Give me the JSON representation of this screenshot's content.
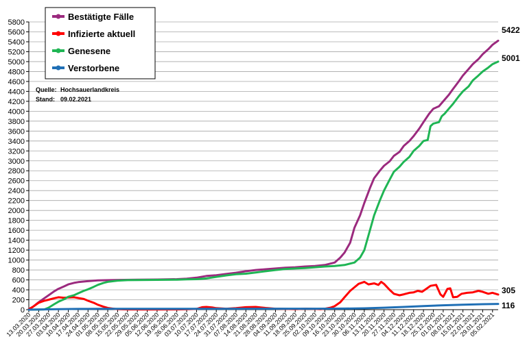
{
  "chart_data": {
    "type": "line",
    "title": "",
    "xlabel": "",
    "ylabel": "",
    "ylim": [
      0,
      5800
    ],
    "yticks": [
      0,
      200,
      400,
      600,
      800,
      1000,
      1200,
      1400,
      1600,
      1800,
      2000,
      2200,
      2400,
      2600,
      2800,
      3000,
      3200,
      3400,
      3600,
      3800,
      4000,
      4200,
      4400,
      4600,
      4800,
      5000,
      5200,
      5400,
      5600,
      5800
    ],
    "x_start": "13.03.2020",
    "x_end": "09.02.2021",
    "x_tick_labels": [
      "13.03.2020",
      "20.03.2020",
      "27.03.2020",
      "03.04.2020",
      "10.04.2020",
      "17.04.2020",
      "24.04.2020",
      "01.05.2020",
      "08.05.2020",
      "15.05.2020",
      "22.05.2020",
      "29.05.2020",
      "05.06.2020",
      "12.06.2020",
      "19.06.2020",
      "26.06.2020",
      "03.07.2020",
      "10.07.2020",
      "17.07.2020",
      "24.07.2020",
      "31.07.2020",
      "07.08.2020",
      "14.08.2020",
      "21.08.2020",
      "28.08.2020",
      "04.09.2020",
      "11.09.2020",
      "18.09.2020",
      "25.09.2020",
      "02.10.2020",
      "09.10.2020",
      "16.10.2020",
      "23.10.2020",
      "30.10.2020",
      "06.11.2020",
      "13.11.2020",
      "20.11.2020",
      "27.11.2020",
      "04.12.2020",
      "11.12.2020",
      "18.12.2020",
      "25.12.2020",
      "01.01.2021",
      "08.01.2021",
      "15.01.2021",
      "22.01.2021",
      "29.01.2021",
      "05.02.2021"
    ],
    "grid": "horizontal",
    "legend_position": "top-left",
    "annotations": {
      "source_label": "Quelle:",
      "source_value": "Hochsauerlandkreis",
      "date_label": "Stand:",
      "date_value": "09.02.2021"
    },
    "series": [
      {
        "name": "Bestätigte Fälle",
        "color": "#9b2a7e",
        "end_label": "5422",
        "points": [
          [
            "13.03.2020",
            10
          ],
          [
            "16.03.2020",
            60
          ],
          [
            "20.03.2020",
            150
          ],
          [
            "24.03.2020",
            230
          ],
          [
            "27.03.2020",
            290
          ],
          [
            "31.03.2020",
            370
          ],
          [
            "03.04.2020",
            420
          ],
          [
            "07.04.2020",
            470
          ],
          [
            "10.04.2020",
            510
          ],
          [
            "14.04.2020",
            540
          ],
          [
            "17.04.2020",
            555
          ],
          [
            "24.04.2020",
            575
          ],
          [
            "01.05.2020",
            590
          ],
          [
            "15.05.2020",
            600
          ],
          [
            "29.05.2020",
            605
          ],
          [
            "12.06.2020",
            608
          ],
          [
            "26.06.2020",
            615
          ],
          [
            "03.07.2020",
            625
          ],
          [
            "10.07.2020",
            645
          ],
          [
            "17.07.2020",
            680
          ],
          [
            "24.07.2020",
            695
          ],
          [
            "31.07.2020",
            720
          ],
          [
            "07.08.2020",
            745
          ],
          [
            "14.08.2020",
            775
          ],
          [
            "21.08.2020",
            800
          ],
          [
            "28.08.2020",
            815
          ],
          [
            "04.09.2020",
            830
          ],
          [
            "11.09.2020",
            845
          ],
          [
            "18.09.2020",
            855
          ],
          [
            "25.09.2020",
            870
          ],
          [
            "02.10.2020",
            880
          ],
          [
            "09.10.2020",
            900
          ],
          [
            "16.10.2020",
            950
          ],
          [
            "20.10.2020",
            1050
          ],
          [
            "23.10.2020",
            1150
          ],
          [
            "27.10.2020",
            1350
          ],
          [
            "30.10.2020",
            1650
          ],
          [
            "03.11.2020",
            1900
          ],
          [
            "06.11.2020",
            2150
          ],
          [
            "10.11.2020",
            2450
          ],
          [
            "13.11.2020",
            2650
          ],
          [
            "17.11.2020",
            2800
          ],
          [
            "20.11.2020",
            2900
          ],
          [
            "24.11.2020",
            2990
          ],
          [
            "27.11.2020",
            3100
          ],
          [
            "01.12.2020",
            3180
          ],
          [
            "04.12.2020",
            3300
          ],
          [
            "08.12.2020",
            3400
          ],
          [
            "11.12.2020",
            3500
          ],
          [
            "15.12.2020",
            3650
          ],
          [
            "18.12.2020",
            3780
          ],
          [
            "22.12.2020",
            3950
          ],
          [
            "25.12.2020",
            4050
          ],
          [
            "29.12.2020",
            4100
          ],
          [
            "01.01.2021",
            4200
          ],
          [
            "05.01.2021",
            4330
          ],
          [
            "08.01.2021",
            4450
          ],
          [
            "12.01.2021",
            4600
          ],
          [
            "15.01.2021",
            4720
          ],
          [
            "19.01.2021",
            4850
          ],
          [
            "22.01.2021",
            4950
          ],
          [
            "26.01.2021",
            5050
          ],
          [
            "29.01.2021",
            5150
          ],
          [
            "02.02.2021",
            5250
          ],
          [
            "05.02.2021",
            5340
          ],
          [
            "09.02.2021",
            5422
          ]
        ]
      },
      {
        "name": "Infizierte aktuell",
        "color": "#ff0000",
        "end_label": "305",
        "points": [
          [
            "13.03.2020",
            10
          ],
          [
            "16.03.2020",
            60
          ],
          [
            "20.03.2020",
            140
          ],
          [
            "24.03.2020",
            180
          ],
          [
            "27.03.2020",
            200
          ],
          [
            "31.03.2020",
            230
          ],
          [
            "03.04.2020",
            250
          ],
          [
            "07.04.2020",
            240
          ],
          [
            "10.04.2020",
            245
          ],
          [
            "14.04.2020",
            250
          ],
          [
            "17.04.2020",
            235
          ],
          [
            "21.04.2020",
            215
          ],
          [
            "24.04.2020",
            180
          ],
          [
            "28.04.2020",
            140
          ],
          [
            "01.05.2020",
            100
          ],
          [
            "05.05.2020",
            60
          ],
          [
            "08.05.2020",
            35
          ],
          [
            "12.05.2020",
            20
          ],
          [
            "15.05.2020",
            10
          ],
          [
            "22.05.2020",
            5
          ],
          [
            "05.06.2020",
            3
          ],
          [
            "26.06.2020",
            5
          ],
          [
            "03.07.2020",
            8
          ],
          [
            "10.07.2020",
            15
          ],
          [
            "14.07.2020",
            50
          ],
          [
            "17.07.2020",
            55
          ],
          [
            "21.07.2020",
            45
          ],
          [
            "24.07.2020",
            30
          ],
          [
            "31.07.2020",
            20
          ],
          [
            "07.08.2020",
            30
          ],
          [
            "14.08.2020",
            50
          ],
          [
            "21.08.2020",
            55
          ],
          [
            "28.08.2020",
            35
          ],
          [
            "04.09.2020",
            20
          ],
          [
            "11.09.2020",
            15
          ],
          [
            "18.09.2020",
            10
          ],
          [
            "25.09.2020",
            20
          ],
          [
            "02.10.2020",
            15
          ],
          [
            "06.10.2020",
            10
          ],
          [
            "09.10.2020",
            20
          ],
          [
            "13.10.2020",
            40
          ],
          [
            "16.10.2020",
            70
          ],
          [
            "20.10.2020",
            150
          ],
          [
            "23.10.2020",
            250
          ],
          [
            "27.10.2020",
            380
          ],
          [
            "30.10.2020",
            450
          ],
          [
            "02.11.2020",
            520
          ],
          [
            "06.11.2020",
            560
          ],
          [
            "09.11.2020",
            510
          ],
          [
            "13.11.2020",
            530
          ],
          [
            "16.11.2020",
            500
          ],
          [
            "18.11.2020",
            560
          ],
          [
            "20.11.2020",
            520
          ],
          [
            "24.11.2020",
            400
          ],
          [
            "27.11.2020",
            320
          ],
          [
            "01.12.2020",
            290
          ],
          [
            "04.12.2020",
            310
          ],
          [
            "08.12.2020",
            340
          ],
          [
            "11.12.2020",
            350
          ],
          [
            "14.12.2020",
            380
          ],
          [
            "17.12.2020",
            360
          ],
          [
            "20.12.2020",
            420
          ],
          [
            "23.12.2020",
            480
          ],
          [
            "27.12.2020",
            500
          ],
          [
            "30.12.2020",
            310
          ],
          [
            "01.01.2021",
            260
          ],
          [
            "04.01.2021",
            420
          ],
          [
            "06.01.2021",
            430
          ],
          [
            "08.01.2021",
            250
          ],
          [
            "11.01.2021",
            260
          ],
          [
            "14.01.2021",
            320
          ],
          [
            "18.01.2021",
            340
          ],
          [
            "22.01.2021",
            350
          ],
          [
            "26.01.2021",
            380
          ],
          [
            "29.01.2021",
            360
          ],
          [
            "02.02.2021",
            320
          ],
          [
            "05.02.2021",
            340
          ],
          [
            "09.02.2021",
            305
          ]
        ]
      },
      {
        "name": "Genesene",
        "color": "#1fb554",
        "end_label": "5001",
        "points": [
          [
            "13.03.2020",
            0
          ],
          [
            "24.03.2020",
            5
          ],
          [
            "27.03.2020",
            40
          ],
          [
            "31.03.2020",
            110
          ],
          [
            "03.04.2020",
            160
          ],
          [
            "07.04.2020",
            210
          ],
          [
            "10.04.2020",
            260
          ],
          [
            "14.04.2020",
            290
          ],
          [
            "17.04.2020",
            330
          ],
          [
            "21.04.2020",
            380
          ],
          [
            "24.04.2020",
            410
          ],
          [
            "28.04.2020",
            460
          ],
          [
            "01.05.2020",
            500
          ],
          [
            "05.05.2020",
            540
          ],
          [
            "08.05.2020",
            560
          ],
          [
            "12.05.2020",
            575
          ],
          [
            "15.05.2020",
            585
          ],
          [
            "22.05.2020",
            595
          ],
          [
            "05.06.2020",
            600
          ],
          [
            "26.06.2020",
            605
          ],
          [
            "03.07.2020",
            610
          ],
          [
            "10.07.2020",
            615
          ],
          [
            "17.07.2020",
            630
          ],
          [
            "24.07.2020",
            660
          ],
          [
            "31.07.2020",
            690
          ],
          [
            "07.08.2020",
            715
          ],
          [
            "14.08.2020",
            725
          ],
          [
            "21.08.2020",
            750
          ],
          [
            "28.08.2020",
            775
          ],
          [
            "04.09.2020",
            800
          ],
          [
            "11.09.2020",
            820
          ],
          [
            "18.09.2020",
            830
          ],
          [
            "25.09.2020",
            840
          ],
          [
            "02.10.2020",
            855
          ],
          [
            "09.10.2020",
            870
          ],
          [
            "16.10.2020",
            880
          ],
          [
            "23.10.2020",
            900
          ],
          [
            "30.10.2020",
            950
          ],
          [
            "03.11.2020",
            1050
          ],
          [
            "06.11.2020",
            1200
          ],
          [
            "10.11.2020",
            1600
          ],
          [
            "13.11.2020",
            1900
          ],
          [
            "17.11.2020",
            2200
          ],
          [
            "20.11.2020",
            2400
          ],
          [
            "24.11.2020",
            2620
          ],
          [
            "27.11.2020",
            2780
          ],
          [
            "01.12.2020",
            2880
          ],
          [
            "04.12.2020",
            2980
          ],
          [
            "08.12.2020",
            3080
          ],
          [
            "11.12.2020",
            3200
          ],
          [
            "15.12.2020",
            3300
          ],
          [
            "18.12.2020",
            3400
          ],
          [
            "21.12.2020",
            3420
          ],
          [
            "23.12.2020",
            3700
          ],
          [
            "25.12.2020",
            3750
          ],
          [
            "29.12.2020",
            3780
          ],
          [
            "31.12.2020",
            3900
          ],
          [
            "02.01.2021",
            3950
          ],
          [
            "05.01.2021",
            4050
          ],
          [
            "08.01.2021",
            4150
          ],
          [
            "12.01.2021",
            4300
          ],
          [
            "15.01.2021",
            4400
          ],
          [
            "19.01.2021",
            4500
          ],
          [
            "22.01.2021",
            4620
          ],
          [
            "26.01.2021",
            4720
          ],
          [
            "29.01.2021",
            4800
          ],
          [
            "02.02.2021",
            4880
          ],
          [
            "05.02.2021",
            4950
          ],
          [
            "09.02.2021",
            5001
          ]
        ]
      },
      {
        "name": "Verstorbene",
        "color": "#1f6fb5",
        "end_label": "116",
        "points": [
          [
            "13.03.2020",
            0
          ],
          [
            "20.03.2020",
            3
          ],
          [
            "03.04.2020",
            10
          ],
          [
            "17.04.2020",
            15
          ],
          [
            "01.05.2020",
            17
          ],
          [
            "03.07.2020",
            18
          ],
          [
            "02.10.2020",
            19
          ],
          [
            "23.10.2020",
            22
          ],
          [
            "06.11.2020",
            28
          ],
          [
            "20.11.2020",
            40
          ],
          [
            "04.12.2020",
            55
          ],
          [
            "18.12.2020",
            72
          ],
          [
            "01.01.2021",
            88
          ],
          [
            "15.01.2021",
            100
          ],
          [
            "29.01.2021",
            110
          ],
          [
            "09.02.2021",
            116
          ]
        ]
      }
    ]
  }
}
